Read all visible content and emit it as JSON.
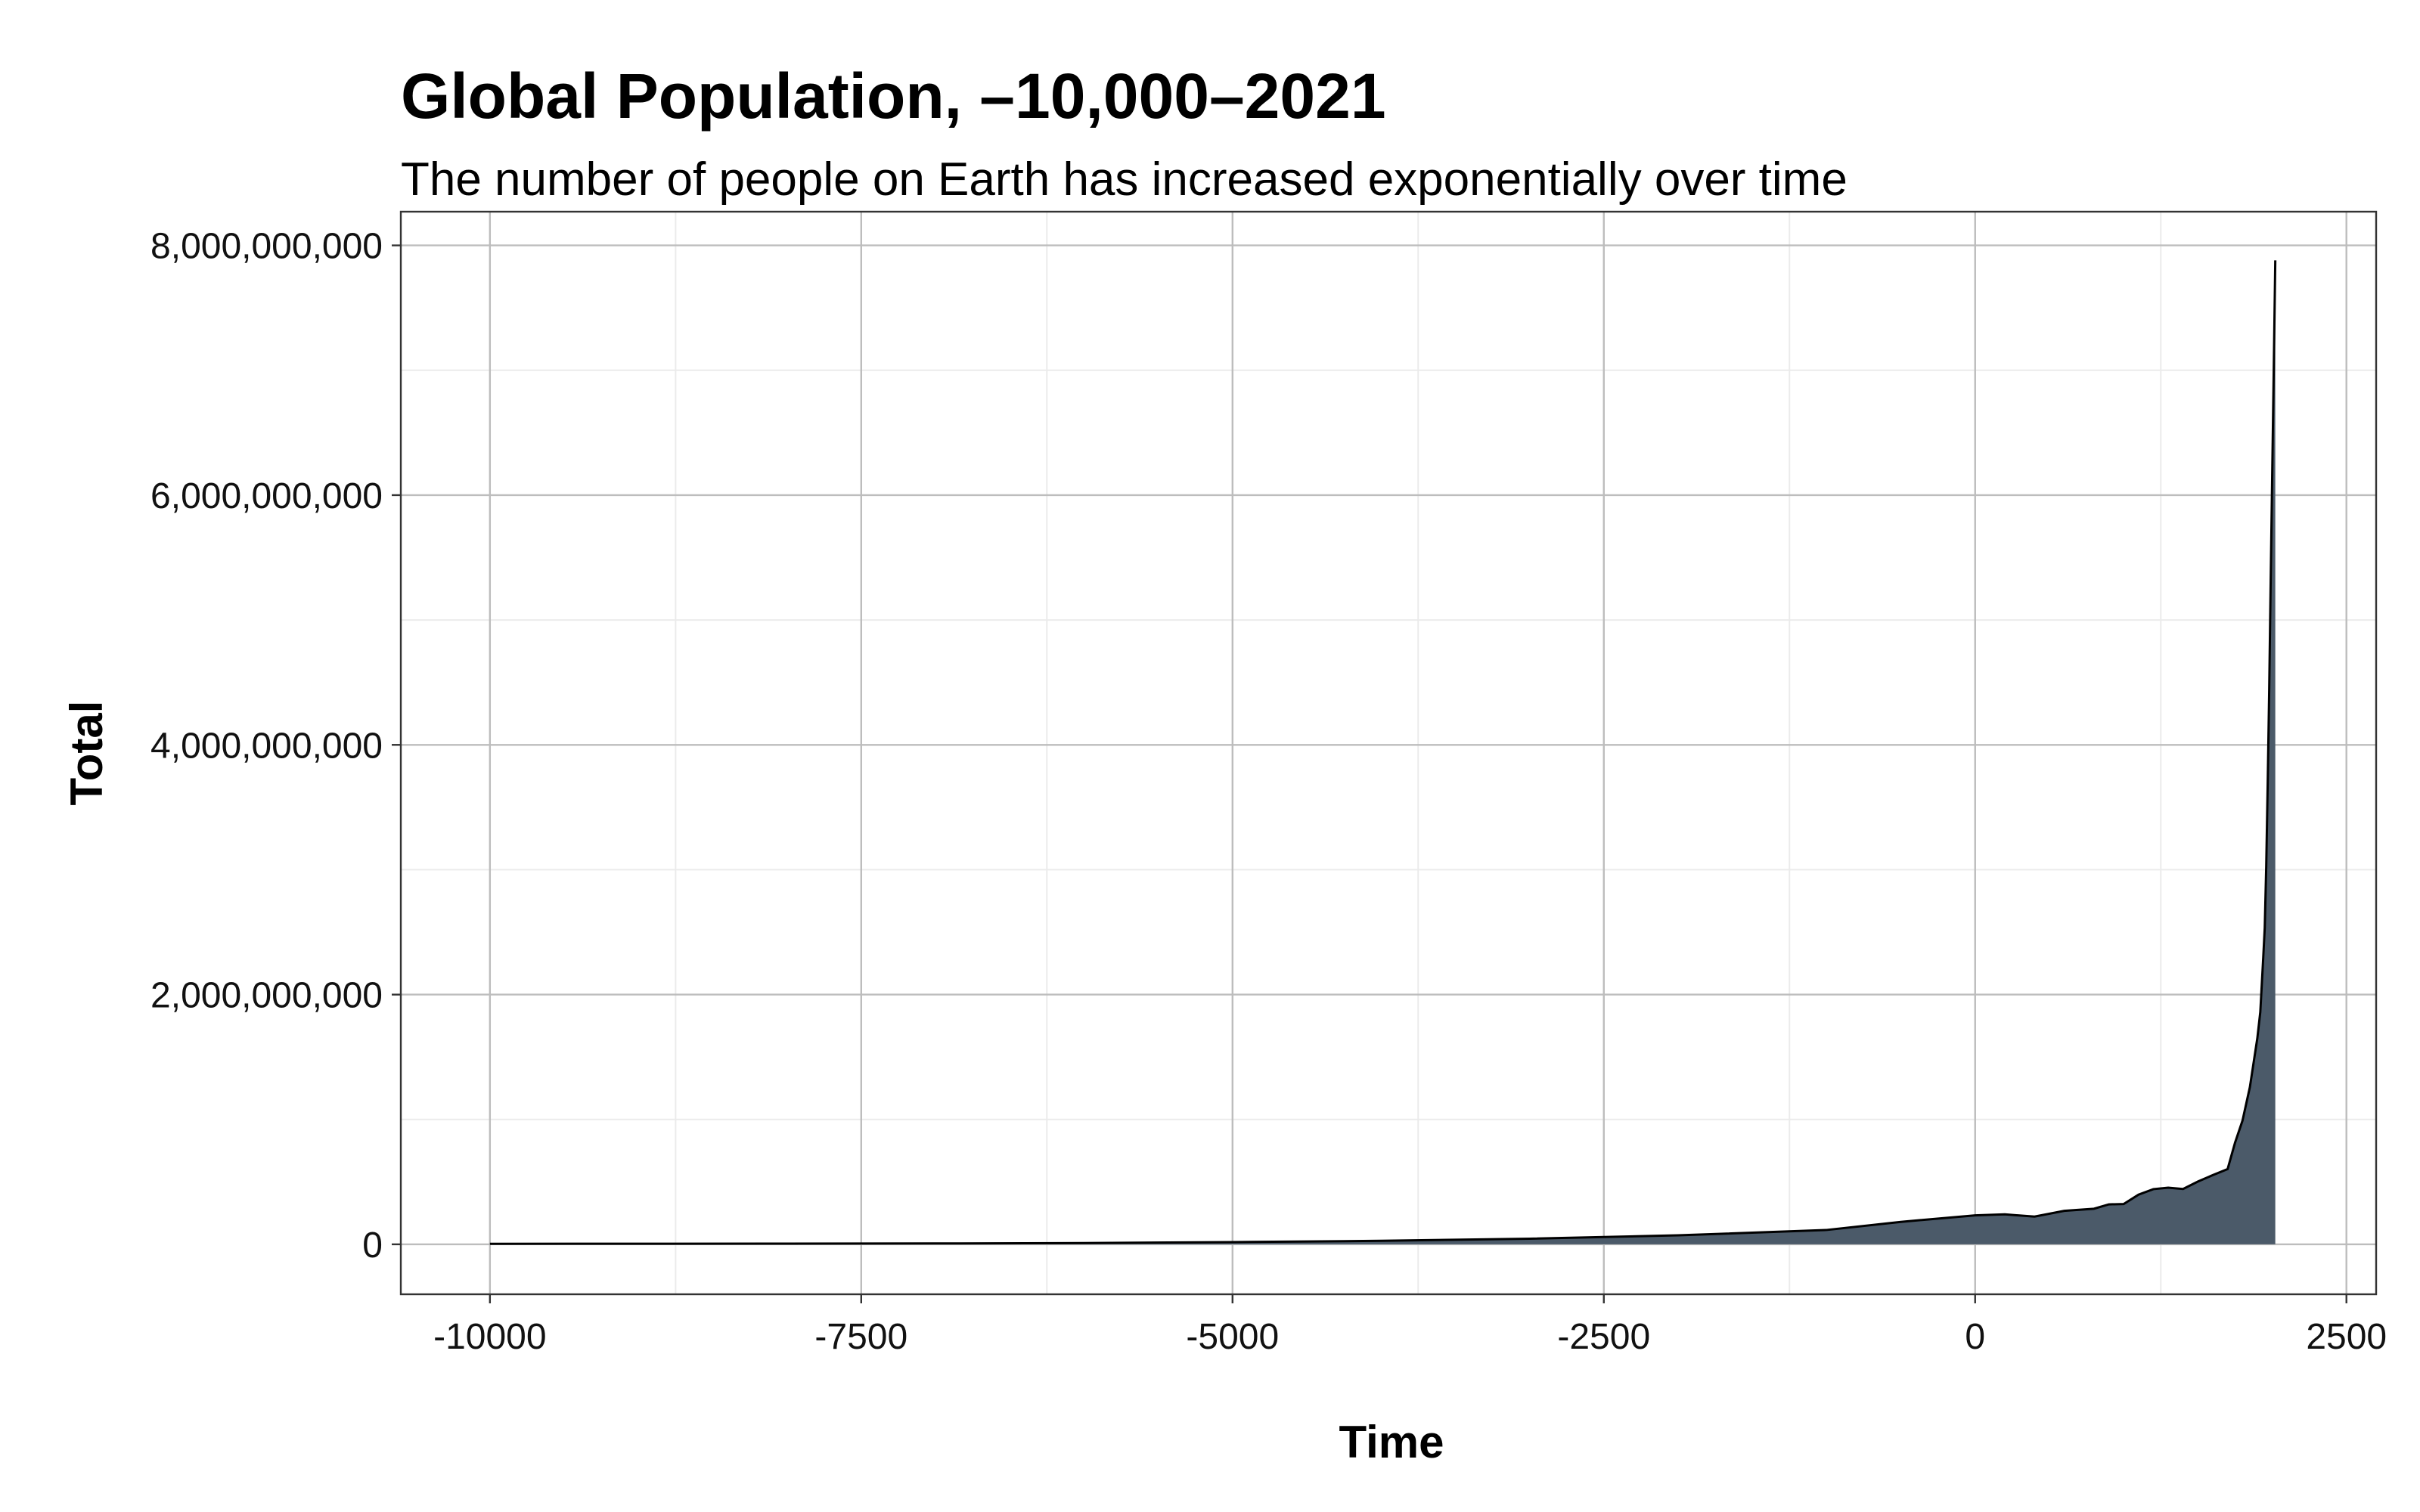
{
  "chart_data": {
    "type": "area",
    "title": "Global Population, –10,000–2021",
    "subtitle": "The number of people on Earth has increased exponentially over time",
    "xlabel": "Time",
    "ylabel": "Total",
    "xlim": [
      -10600,
      2700
    ],
    "ylim": [
      -400000000,
      8270000000
    ],
    "x_ticks": [
      -10000,
      -7500,
      -5000,
      -2500,
      0,
      2500
    ],
    "x_tick_labels": [
      "-10000",
      "-7500",
      "-5000",
      "-2500",
      "0",
      "2500"
    ],
    "y_ticks": [
      0,
      2000000000,
      4000000000,
      6000000000,
      8000000000
    ],
    "y_tick_labels": [
      "0",
      "2,000,000,000",
      "4,000,000,000",
      "6,000,000,000",
      "8,000,000,000"
    ],
    "grid": true,
    "fill_color": "#4b5a69",
    "line_color": "#000000",
    "series": [
      {
        "x": [
          -10000,
          -9000,
          -8000,
          -7000,
          -6000,
          -5000,
          -4000,
          -3000,
          -2000,
          -1000,
          -500,
          0,
          200,
          400,
          600,
          800,
          900,
          1000,
          1100,
          1200,
          1300,
          1400,
          1500,
          1600,
          1700,
          1750,
          1800,
          1850,
          1900,
          1920,
          1940,
          1950,
          1960,
          1970,
          1980,
          1990,
          2000,
          2010,
          2021
        ],
        "y": [
          4000000,
          5000000,
          5500000,
          7000000,
          10000000,
          18000000,
          28000000,
          45000000,
          72000000,
          115000000,
          180000000,
          232000000,
          240000000,
          222000000,
          268000000,
          285000000,
          320000000,
          323000000,
          398000000,
          442000000,
          454000000,
          443000000,
          503000000,
          554000000,
          603000000,
          814000000,
          990000000,
          1260000000,
          1650000000,
          1860000000,
          2300000000,
          2536000000,
          3030000000,
          3700000000,
          4440000000,
          5320000000,
          6140000000,
          6960000000,
          7880000000
        ]
      }
    ]
  }
}
